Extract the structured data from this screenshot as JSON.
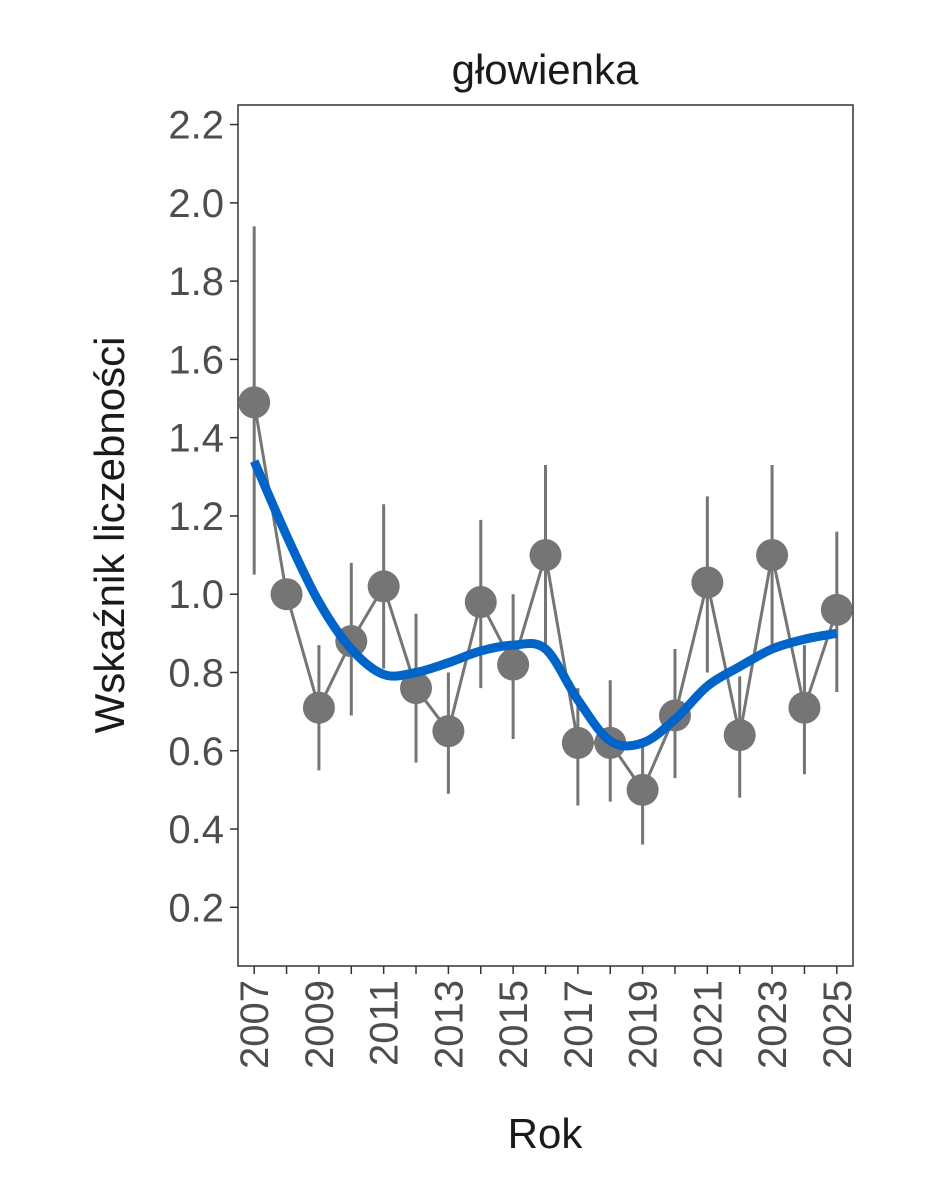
{
  "chart_data": {
    "type": "line",
    "title": "głowienka",
    "xlabel": "Rok",
    "ylabel": "Wskaźnik liczebności",
    "ylim": [
      0.05,
      2.25
    ],
    "xlim": [
      2006.5,
      2025.5
    ],
    "yticks": [
      "0.2",
      "0.4",
      "0.6",
      "0.8",
      "1.0",
      "1.2",
      "1.4",
      "1.6",
      "1.8",
      "2.0",
      "2.2"
    ],
    "xticks": [
      "2007",
      "2009",
      "2011",
      "2013",
      "2015",
      "2017",
      "2019",
      "2021",
      "2023",
      "2025"
    ],
    "grid": false,
    "series": [
      {
        "name": "index",
        "color": "#757575",
        "x": [
          2007,
          2008,
          2009,
          2010,
          2011,
          2012,
          2013,
          2014,
          2015,
          2016,
          2017,
          2018,
          2019,
          2020,
          2021,
          2022,
          2023,
          2024,
          2025
        ],
        "values": [
          1.49,
          1.0,
          0.71,
          0.88,
          1.02,
          0.76,
          0.65,
          0.98,
          0.82,
          1.1,
          0.62,
          0.62,
          0.5,
          0.69,
          1.03,
          0.64,
          1.1,
          0.71,
          0.96
        ],
        "ci_low": [
          1.05,
          null,
          0.55,
          0.69,
          0.81,
          0.57,
          0.49,
          0.76,
          0.63,
          0.87,
          0.46,
          0.47,
          0.36,
          0.53,
          0.8,
          0.48,
          0.87,
          0.54,
          0.75
        ],
        "ci_high": [
          1.94,
          null,
          0.87,
          1.08,
          1.23,
          0.95,
          0.8,
          1.19,
          1.0,
          1.33,
          0.76,
          0.78,
          0.63,
          0.86,
          1.25,
          0.79,
          1.33,
          0.87,
          1.16
        ]
      },
      {
        "name": "trend",
        "color": "#0064c8",
        "x": [
          2007,
          2008,
          2009,
          2010,
          2011,
          2012,
          2013,
          2014,
          2015,
          2016,
          2017,
          2018,
          2019,
          2020,
          2021,
          2022,
          2023,
          2024,
          2025
        ],
        "values": [
          1.34,
          1.15,
          0.98,
          0.86,
          0.795,
          0.8,
          0.825,
          0.855,
          0.87,
          0.86,
          0.73,
          0.625,
          0.62,
          0.68,
          0.765,
          0.815,
          0.86,
          0.885,
          0.9
        ]
      }
    ]
  }
}
